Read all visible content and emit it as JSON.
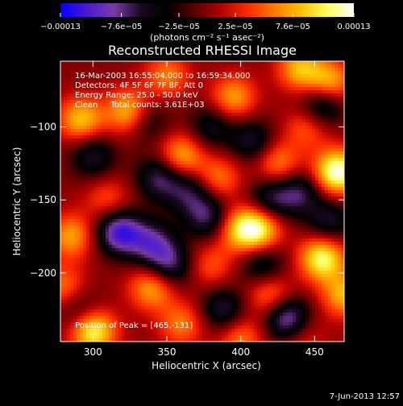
{
  "chart_data": {
    "type": "heatmap",
    "title": "Reconstructed RHESSI Image",
    "xlabel": "Heliocentric X (arcsec)",
    "ylabel": "Heliocentric Y (arcsec)",
    "xlim": [
      278,
      470
    ],
    "ylim": [
      -247,
      -55
    ],
    "xticks": [
      300,
      350,
      400,
      450
    ],
    "yticks": [
      -100,
      -150,
      -200
    ],
    "colorbar": {
      "min": -0.00013,
      "max": 0.00013,
      "tick_values": [
        -0.00013,
        -7.6e-05,
        -2.5e-05,
        2.5e-05,
        7.6e-05,
        0.00013
      ],
      "tick_labels": [
        "−0.00013",
        "−7.6e−05",
        "−2.5e−05",
        "2.5e−05",
        "7.6e−05",
        "0.00013"
      ],
      "unit_label": "(photons cm⁻² s⁻¹ asec⁻²)",
      "colors": [
        "#0000ff",
        "#4b1ad0",
        "#7a3aa8",
        "#1a0a20",
        "#000000",
        "#5a0000",
        "#b00000",
        "#ff2a00",
        "#ff7a00",
        "#ffc000",
        "#ffff60",
        "#ffffff"
      ]
    },
    "annotations": [
      "16-Mar-2003 16:55:04.000 to 16:59:34.000",
      "Detectors: 4F 5F 6F 7F 8F, Att 0",
      "Energy Range: 25.0 - 50.0 keV",
      "Clean     Total counts: 3.61E+03"
    ],
    "peak_label": "Position of Peak = [465,-131]",
    "peak": [
      465,
      -131
    ],
    "blobs": [
      {
        "x": 465,
        "y": -131,
        "v": 1.0
      },
      {
        "x": 300,
        "y": -240,
        "v": 0.85
      },
      {
        "x": 412,
        "y": -170,
        "v": 0.8
      },
      {
        "x": 398,
        "y": -170,
        "v": 0.55
      },
      {
        "x": 455,
        "y": -190,
        "v": 0.85
      },
      {
        "x": 325,
        "y": -90,
        "v": 0.75
      },
      {
        "x": 292,
        "y": -95,
        "v": 0.65
      },
      {
        "x": 360,
        "y": -120,
        "v": 0.6
      },
      {
        "x": 395,
        "y": -80,
        "v": 0.55
      },
      {
        "x": 440,
        "y": -60,
        "v": 0.6
      },
      {
        "x": 460,
        "y": -70,
        "v": 0.65
      },
      {
        "x": 470,
        "y": -215,
        "v": 0.6
      },
      {
        "x": 385,
        "y": -135,
        "v": 0.45
      },
      {
        "x": 425,
        "y": -125,
        "v": 0.5
      },
      {
        "x": 285,
        "y": -175,
        "v": 0.55
      },
      {
        "x": 340,
        "y": -210,
        "v": 0.6
      },
      {
        "x": 360,
        "y": -235,
        "v": 0.45
      },
      {
        "x": 420,
        "y": -215,
        "v": 0.5
      },
      {
        "x": 280,
        "y": -210,
        "v": 0.45
      },
      {
        "x": 310,
        "y": -150,
        "v": 0.35
      },
      {
        "x": 445,
        "y": -100,
        "v": 0.4
      },
      {
        "x": 350,
        "y": -65,
        "v": 0.45
      },
      {
        "x": 400,
        "y": -245,
        "v": 0.45
      },
      {
        "x": 440,
        "y": -242,
        "v": 0.35
      },
      {
        "x": 380,
        "y": -195,
        "v": 0.35
      },
      {
        "x": 318,
        "y": -172,
        "v": -0.85
      },
      {
        "x": 345,
        "y": -135,
        "v": -0.55
      },
      {
        "x": 340,
        "y": -180,
        "v": -0.6
      },
      {
        "x": 335,
        "y": -95,
        "v": -0.45
      },
      {
        "x": 352,
        "y": -195,
        "v": -0.55
      },
      {
        "x": 378,
        "y": -162,
        "v": -0.55
      },
      {
        "x": 455,
        "y": -85,
        "v": -0.6
      },
      {
        "x": 432,
        "y": -232,
        "v": -0.85
      },
      {
        "x": 408,
        "y": -110,
        "v": -0.45
      },
      {
        "x": 420,
        "y": -150,
        "v": -0.5
      },
      {
        "x": 388,
        "y": -225,
        "v": -0.5
      },
      {
        "x": 300,
        "y": -120,
        "v": -0.45
      },
      {
        "x": 415,
        "y": -195,
        "v": -0.45
      },
      {
        "x": 380,
        "y": -100,
        "v": -0.4
      },
      {
        "x": 460,
        "y": -165,
        "v": -0.45
      },
      {
        "x": 290,
        "y": -225,
        "v": -0.35
      },
      {
        "x": 365,
        "y": -145,
        "v": -0.45
      },
      {
        "x": 440,
        "y": -145,
        "v": -0.5
      }
    ]
  },
  "footer": {
    "timestamp": "7-Jun-2013 12:57"
  }
}
